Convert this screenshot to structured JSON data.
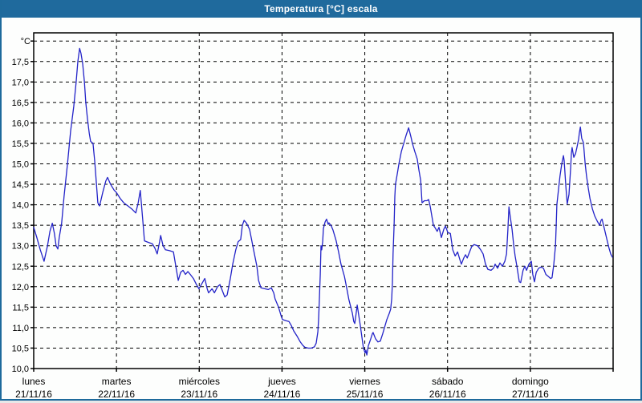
{
  "window": {
    "title": "Temperatura [°C] escala"
  },
  "colors": {
    "titlebar_bg": "#1f6a9d",
    "titlebar_text": "#ffffff",
    "frame_border": "#1e6a9c",
    "plot_bg": "#fdfefd",
    "grid": "#000000",
    "axis": "#000000",
    "line": "#2323c8"
  },
  "chart_data": {
    "type": "line",
    "title": "Temperatura [°C] escala",
    "xlabel": "",
    "ylabel": "°C",
    "ylim": [
      10.0,
      18.2
    ],
    "ytick_step": 0.5,
    "ytick_labels": [
      "10,0",
      "10,5",
      "11,0",
      "11,5",
      "12,0",
      "12,5",
      "13,0",
      "13,5",
      "14,0",
      "14,5",
      "15,0",
      "15,5",
      "16,0",
      "16,5",
      "17,0",
      "17,5"
    ],
    "ytick_values": [
      10.0,
      10.5,
      11.0,
      11.5,
      12.0,
      12.5,
      13.0,
      13.5,
      14.0,
      14.5,
      15.0,
      15.5,
      16.0,
      16.5,
      17.0,
      17.5
    ],
    "unit_label": "°C",
    "grid": "dashed",
    "legend": "none",
    "x_unit": "hours",
    "xlim": [
      0,
      168
    ],
    "day_span_hours": 24,
    "days": [
      {
        "name": "lunes",
        "date": "21/11/16"
      },
      {
        "name": "martes",
        "date": "22/11/16"
      },
      {
        "name": "miércoles",
        "date": "23/11/16"
      },
      {
        "name": "jueves",
        "date": "24/11/16"
      },
      {
        "name": "viernes",
        "date": "25/11/16"
      },
      {
        "name": "sábado",
        "date": "26/11/16"
      },
      {
        "name": "domingo",
        "date": "27/11/16"
      }
    ],
    "series": [
      {
        "name": "Temperatura",
        "color": "#2323c8",
        "points": [
          [
            0,
            13.45
          ],
          [
            0.9,
            13.2
          ],
          [
            1.9,
            12.9
          ],
          [
            3,
            12.62
          ],
          [
            4,
            13
          ],
          [
            4.7,
            13.35
          ],
          [
            5.4,
            13.55
          ],
          [
            6,
            13.3
          ],
          [
            6.5,
            13
          ],
          [
            7,
            12.92
          ],
          [
            7.4,
            13.2
          ],
          [
            8.1,
            13.55
          ],
          [
            8.8,
            14.2
          ],
          [
            9.8,
            15
          ],
          [
            10.7,
            15.8
          ],
          [
            11.6,
            16.4
          ],
          [
            12.3,
            17
          ],
          [
            12.8,
            17.5
          ],
          [
            13.3,
            17.82
          ],
          [
            13.7,
            17.7
          ],
          [
            14.2,
            17.45
          ],
          [
            14.7,
            17
          ],
          [
            15.1,
            16.5
          ],
          [
            15.6,
            16.1
          ],
          [
            16.1,
            15.75
          ],
          [
            16.5,
            15.55
          ],
          [
            17.2,
            15.5
          ],
          [
            17.7,
            15.05
          ],
          [
            18.2,
            14.5
          ],
          [
            18.6,
            14.05
          ],
          [
            19.1,
            13.97
          ],
          [
            20,
            14.3
          ],
          [
            20.9,
            14.58
          ],
          [
            21.4,
            14.67
          ],
          [
            22.3,
            14.5
          ],
          [
            23.3,
            14.36
          ],
          [
            24,
            14.3
          ],
          [
            25.1,
            14.15
          ],
          [
            26.1,
            14.05
          ],
          [
            27.2,
            13.98
          ],
          [
            28.4,
            13.9
          ],
          [
            29.6,
            13.8
          ],
          [
            30.3,
            14.05
          ],
          [
            30.9,
            14.35
          ],
          [
            31.6,
            13.65
          ],
          [
            32.1,
            13.12
          ],
          [
            33.3,
            13.08
          ],
          [
            34.4,
            13.05
          ],
          [
            35.1,
            12.95
          ],
          [
            35.8,
            12.8
          ],
          [
            36.5,
            13.1
          ],
          [
            36.8,
            13.25
          ],
          [
            37.5,
            13
          ],
          [
            38.2,
            12.9
          ],
          [
            39.3,
            12.88
          ],
          [
            40.5,
            12.85
          ],
          [
            41.2,
            12.5
          ],
          [
            41.9,
            12.15
          ],
          [
            42.6,
            12.35
          ],
          [
            43.3,
            12.4
          ],
          [
            44,
            12.3
          ],
          [
            44.7,
            12.37
          ],
          [
            45.4,
            12.3
          ],
          [
            46.3,
            12.2
          ],
          [
            47.2,
            12.05
          ],
          [
            47.9,
            11.95
          ],
          [
            48.6,
            12.05
          ],
          [
            49.6,
            12.2
          ],
          [
            50.3,
            11.95
          ],
          [
            50.7,
            11.85
          ],
          [
            51.7,
            11.95
          ],
          [
            52.4,
            11.85
          ],
          [
            53.3,
            12
          ],
          [
            54,
            12.05
          ],
          [
            54.7,
            11.9
          ],
          [
            55.4,
            11.75
          ],
          [
            56.1,
            11.8
          ],
          [
            57,
            12.2
          ],
          [
            57.7,
            12.55
          ],
          [
            58.6,
            12.9
          ],
          [
            59.3,
            13.1
          ],
          [
            60,
            13.15
          ],
          [
            60.5,
            13.5
          ],
          [
            61,
            13.62
          ],
          [
            61.7,
            13.55
          ],
          [
            62.6,
            13.4
          ],
          [
            63.3,
            13.1
          ],
          [
            64,
            12.8
          ],
          [
            64.7,
            12.5
          ],
          [
            65.2,
            12.15
          ],
          [
            65.9,
            11.97
          ],
          [
            67,
            11.95
          ],
          [
            68,
            11.93
          ],
          [
            68.9,
            11.97
          ],
          [
            69.6,
            11.85
          ],
          [
            70,
            11.7
          ],
          [
            71,
            11.5
          ],
          [
            71.7,
            11.3
          ],
          [
            72.1,
            11.2
          ],
          [
            73.1,
            11.17
          ],
          [
            74,
            11.15
          ],
          [
            74.7,
            11.05
          ],
          [
            75.4,
            10.92
          ],
          [
            76.3,
            10.8
          ],
          [
            77.3,
            10.65
          ],
          [
            78,
            10.57
          ],
          [
            78.6,
            10.52
          ],
          [
            79.6,
            10.5
          ],
          [
            80.5,
            10.5
          ],
          [
            81.4,
            10.53
          ],
          [
            81.9,
            10.62
          ],
          [
            82.4,
            10.9
          ],
          [
            82.6,
            11.2
          ],
          [
            82.8,
            11.6
          ],
          [
            83.1,
            12.3
          ],
          [
            83.3,
            13
          ],
          [
            83.5,
            12.9
          ],
          [
            83.8,
            13.1
          ],
          [
            84,
            13.42
          ],
          [
            84.5,
            13.58
          ],
          [
            84.9,
            13.65
          ],
          [
            85.4,
            13.52
          ],
          [
            85.6,
            13.56
          ],
          [
            86.3,
            13.48
          ],
          [
            86.8,
            13.38
          ],
          [
            87.7,
            13.12
          ],
          [
            88.4,
            12.85
          ],
          [
            89.1,
            12.55
          ],
          [
            90.1,
            12.25
          ],
          [
            90.8,
            11.95
          ],
          [
            91.4,
            11.68
          ],
          [
            92.4,
            11.35
          ],
          [
            92.8,
            11.15
          ],
          [
            93.1,
            11.1
          ],
          [
            93.5,
            11.35
          ],
          [
            93.8,
            11.55
          ],
          [
            94.2,
            11.33
          ],
          [
            94.7,
            11.05
          ],
          [
            95.2,
            10.75
          ],
          [
            95.6,
            10.5
          ],
          [
            96.1,
            10.38
          ],
          [
            96.3,
            10.45
          ],
          [
            96.6,
            10.33
          ],
          [
            97,
            10.55
          ],
          [
            97.7,
            10.72
          ],
          [
            98.2,
            10.85
          ],
          [
            98.4,
            10.88
          ],
          [
            99.1,
            10.73
          ],
          [
            99.8,
            10.65
          ],
          [
            100.5,
            10.67
          ],
          [
            101.2,
            10.85
          ],
          [
            101.7,
            11
          ],
          [
            102.4,
            11.2
          ],
          [
            103.1,
            11.35
          ],
          [
            103.5,
            11.45
          ],
          [
            103.8,
            11.7
          ],
          [
            104,
            12.1
          ],
          [
            104.2,
            12.8
          ],
          [
            104.5,
            13.5
          ],
          [
            104.7,
            14.2
          ],
          [
            104.9,
            14.5
          ],
          [
            105.4,
            14.75
          ],
          [
            105.9,
            15
          ],
          [
            106.6,
            15.3
          ],
          [
            107.3,
            15.5
          ],
          [
            108,
            15.7
          ],
          [
            108.7,
            15.88
          ],
          [
            109.4,
            15.65
          ],
          [
            109.8,
            15.5
          ],
          [
            110.5,
            15.3
          ],
          [
            111.2,
            15.12
          ],
          [
            111.7,
            14.85
          ],
          [
            112.2,
            14.6
          ],
          [
            112.6,
            14.05
          ],
          [
            113.3,
            14.1
          ],
          [
            114,
            14.1
          ],
          [
            114.5,
            14.13
          ],
          [
            115,
            13.95
          ],
          [
            115.4,
            13.75
          ],
          [
            115.9,
            13.5
          ],
          [
            116.3,
            13.45
          ],
          [
            117,
            13.35
          ],
          [
            117.5,
            13.45
          ],
          [
            118.2,
            13.2
          ],
          [
            118.9,
            13.4
          ],
          [
            119.4,
            13.48
          ],
          [
            120.1,
            13.32
          ],
          [
            120.8,
            13.3
          ],
          [
            121.5,
            12.9
          ],
          [
            122.2,
            12.75
          ],
          [
            122.9,
            12.85
          ],
          [
            123.6,
            12.65
          ],
          [
            124,
            12.55
          ],
          [
            124.7,
            12.7
          ],
          [
            125.2,
            12.78
          ],
          [
            125.7,
            12.7
          ],
          [
            126.4,
            12.85
          ],
          [
            127,
            12.98
          ],
          [
            127.7,
            13.03
          ],
          [
            128.7,
            13
          ],
          [
            129.6,
            12.9
          ],
          [
            130.3,
            12.8
          ],
          [
            131,
            12.55
          ],
          [
            131.7,
            12.42
          ],
          [
            132.6,
            12.4
          ],
          [
            133.3,
            12.45
          ],
          [
            133.8,
            12.55
          ],
          [
            134.5,
            12.45
          ],
          [
            135.2,
            12.58
          ],
          [
            135.9,
            12.5
          ],
          [
            136.6,
            12.62
          ],
          [
            137.1,
            12.8
          ],
          [
            137.5,
            13.4
          ],
          [
            137.8,
            13.95
          ],
          [
            138.2,
            13.7
          ],
          [
            138.7,
            13.4
          ],
          [
            139.2,
            13
          ],
          [
            139.6,
            12.75
          ],
          [
            140.1,
            12.5
          ],
          [
            140.8,
            12.12
          ],
          [
            141.2,
            12.1
          ],
          [
            141.9,
            12.4
          ],
          [
            142.4,
            12.5
          ],
          [
            142.9,
            12.4
          ],
          [
            143.6,
            12.55
          ],
          [
            144.3,
            12.62
          ],
          [
            144.7,
            12.3
          ],
          [
            145.2,
            12.12
          ],
          [
            145.7,
            12.35
          ],
          [
            146.4,
            12.45
          ],
          [
            147.1,
            12.48
          ],
          [
            147.8,
            12.45
          ],
          [
            148.5,
            12.3
          ],
          [
            149.2,
            12.25
          ],
          [
            149.9,
            12.2
          ],
          [
            150.3,
            12.22
          ],
          [
            150.8,
            12.55
          ],
          [
            151.3,
            13
          ],
          [
            151.5,
            13.5
          ],
          [
            151.7,
            14
          ],
          [
            152.2,
            14.4
          ],
          [
            152.6,
            14.7
          ],
          [
            153.1,
            15
          ],
          [
            153.6,
            15.2
          ],
          [
            153.8,
            15.08
          ],
          [
            154.3,
            14.45
          ],
          [
            154.7,
            14.02
          ],
          [
            155.2,
            14.25
          ],
          [
            155.7,
            14.9
          ],
          [
            155.9,
            15.25
          ],
          [
            156.1,
            15.4
          ],
          [
            156.6,
            15.16
          ],
          [
            157.1,
            15.25
          ],
          [
            157.5,
            15.4
          ],
          [
            158,
            15.6
          ],
          [
            158.2,
            15.75
          ],
          [
            158.5,
            15.9
          ],
          [
            158.9,
            15.62
          ],
          [
            159.4,
            15.52
          ],
          [
            159.9,
            15
          ],
          [
            160.3,
            14.7
          ],
          [
            160.8,
            14.4
          ],
          [
            161.3,
            14.15
          ],
          [
            162,
            13.9
          ],
          [
            162.7,
            13.72
          ],
          [
            163.4,
            13.6
          ],
          [
            164.1,
            13.5
          ],
          [
            164.5,
            13.62
          ],
          [
            164.8,
            13.65
          ],
          [
            165.5,
            13.4
          ],
          [
            166.2,
            13.15
          ],
          [
            166.8,
            12.95
          ],
          [
            167.3,
            12.8
          ],
          [
            167.8,
            12.72
          ]
        ]
      }
    ]
  }
}
